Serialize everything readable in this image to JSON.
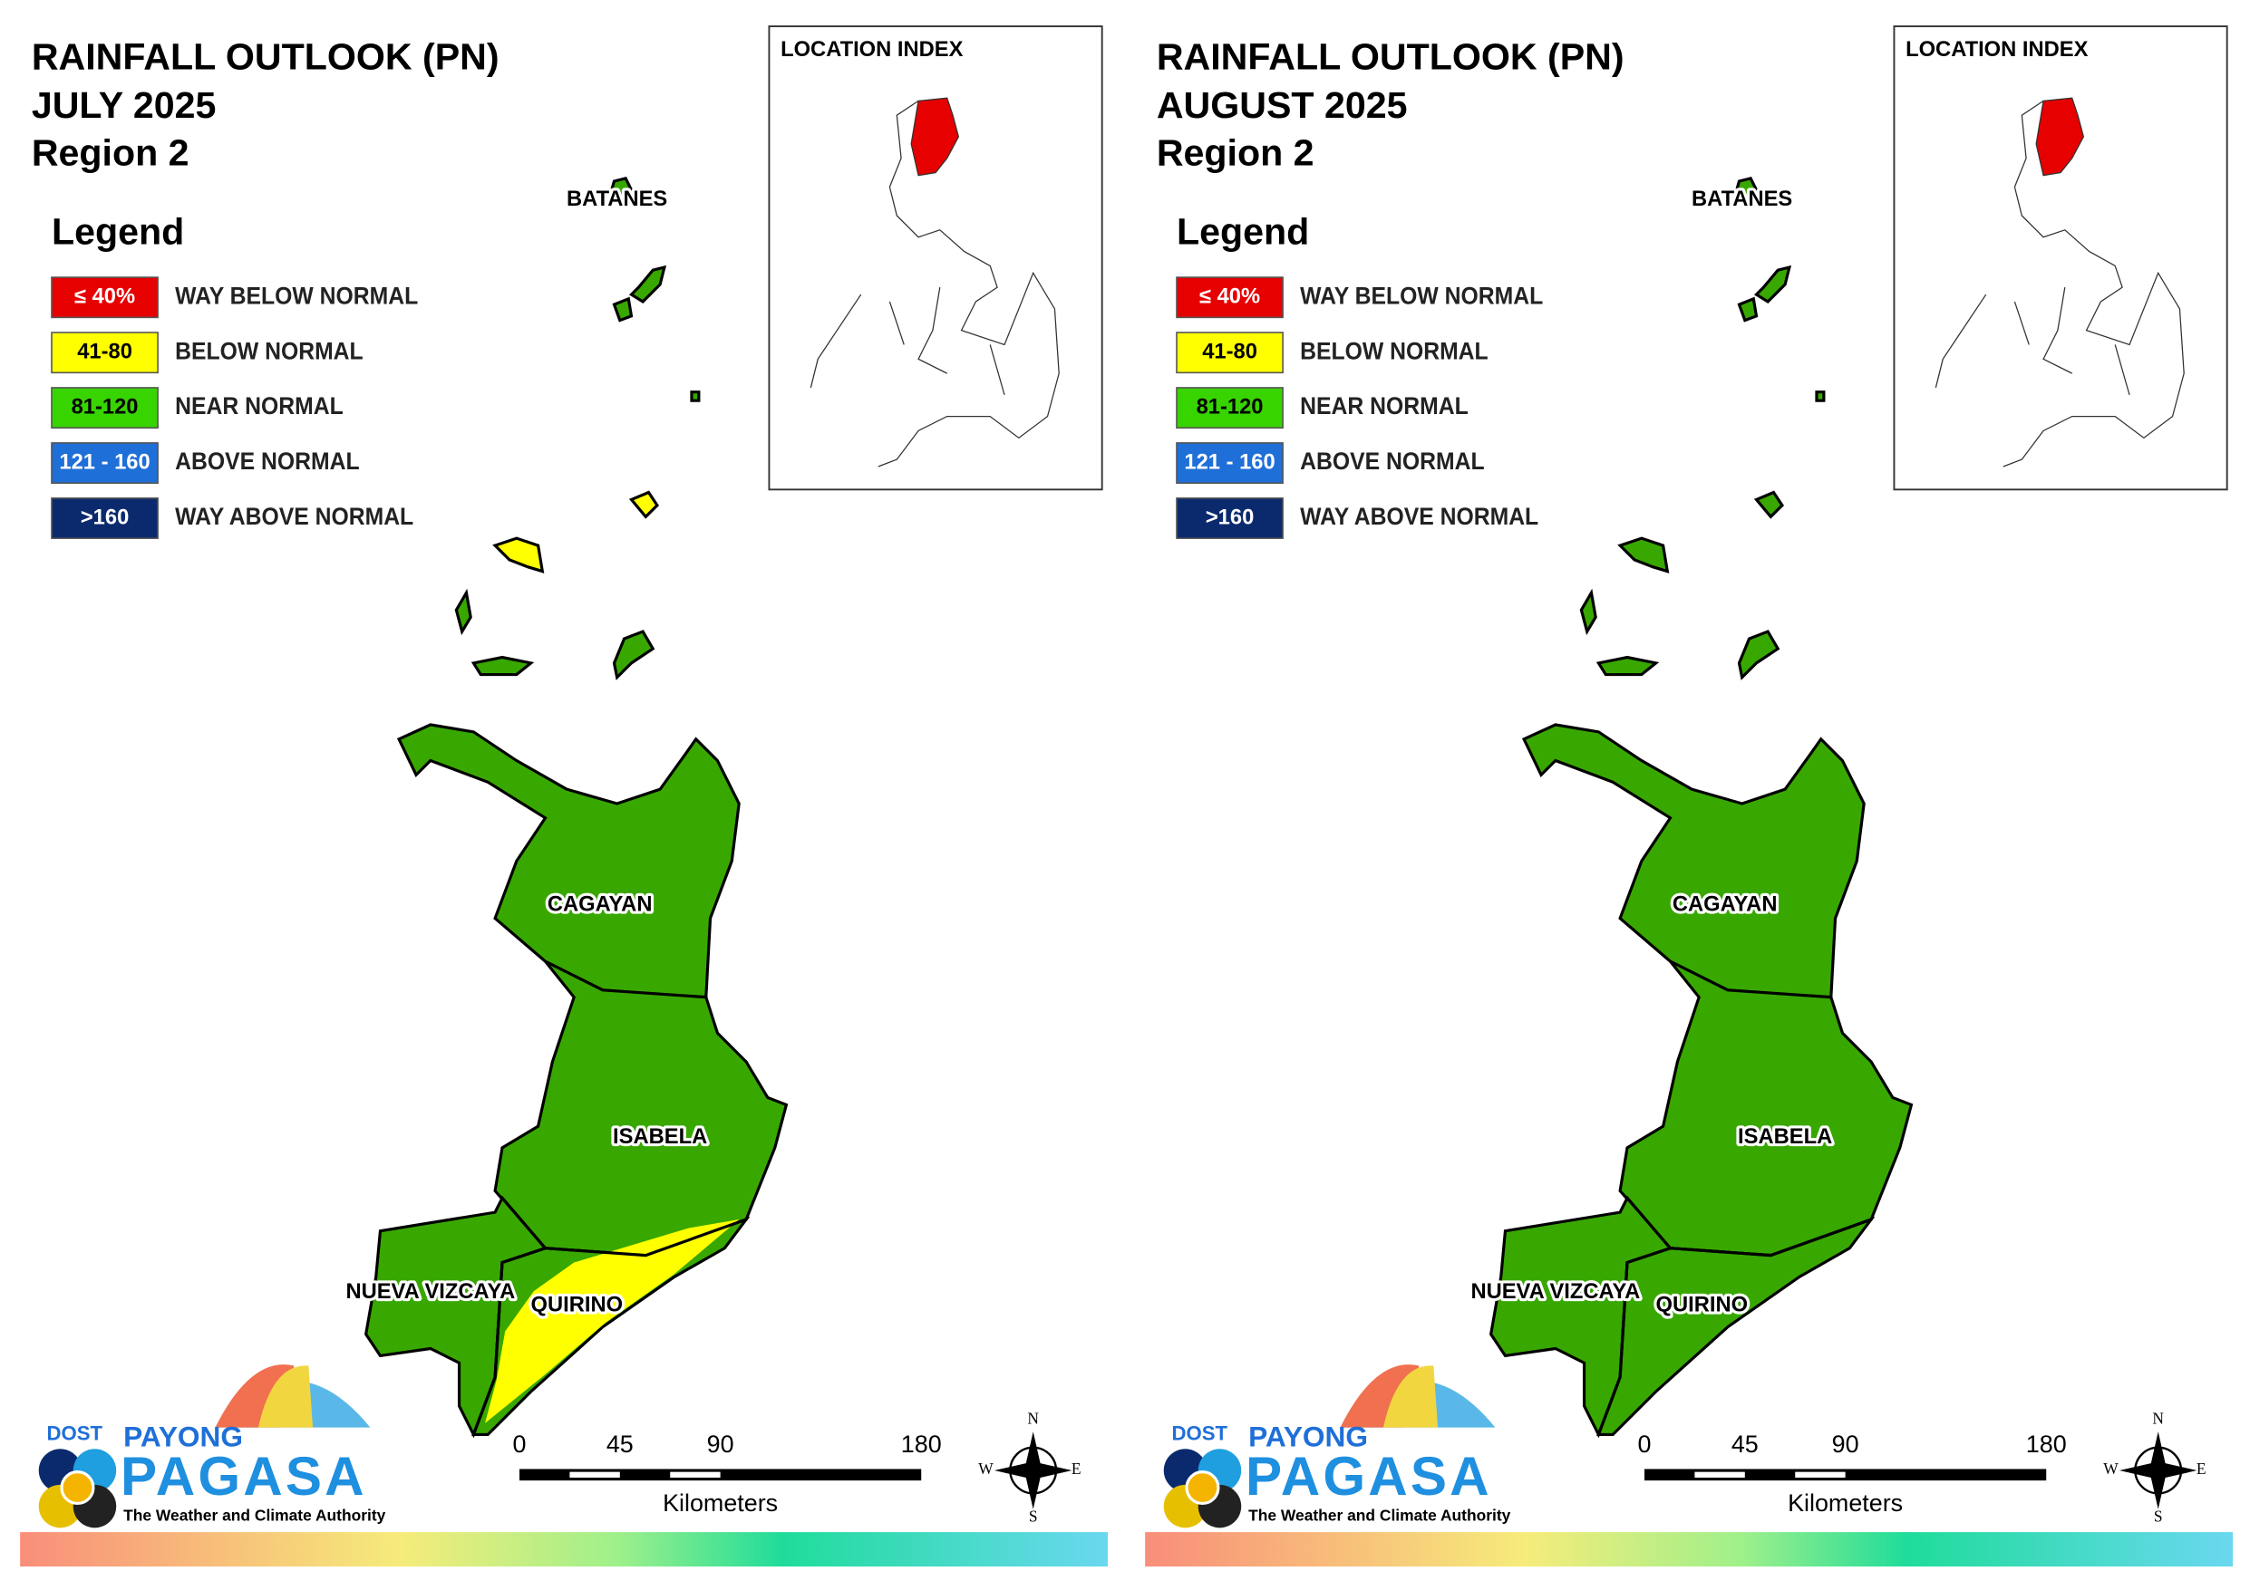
{
  "panels": [
    {
      "title": "RAINFALL OUTLOOK (PN)",
      "period": "JULY 2025",
      "region": "Region 2",
      "legend": {
        "title": "Legend",
        "items": [
          {
            "range": "≤ 40%",
            "label": "WAY BELOW NORMAL",
            "color": "#e60000"
          },
          {
            "range": "41-80",
            "label": "BELOW NORMAL",
            "color": "#ffff00"
          },
          {
            "range": "81-120",
            "label": "NEAR NORMAL",
            "color": "#38d400"
          },
          {
            "range": "121 - 160",
            "label": "ABOVE NORMAL",
            "color": "#1f6fd8"
          },
          {
            "range": ">160",
            "label": "WAY ABOVE NORMAL",
            "color": "#0b2a6e"
          }
        ]
      },
      "location_index": "LOCATION INDEX",
      "places": [
        "BATANES",
        "CAGAYAN",
        "ISABELA",
        "NUEVA VIZCAYA",
        "QUIRINO"
      ],
      "scale": {
        "ticks": [
          0,
          45,
          90,
          180
        ],
        "unit": "Kilometers"
      },
      "compass": [
        "N",
        "E",
        "S",
        "W"
      ],
      "logo": {
        "agency": "DOST",
        "name_top": "PAYONG",
        "name": "PAGASA",
        "tagline": "The Weather and Climate Authority"
      }
    },
    {
      "title": "RAINFALL OUTLOOK (PN)",
      "period": "AUGUST 2025",
      "region": "Region 2",
      "legend": {
        "title": "Legend",
        "items": [
          {
            "range": "≤ 40%",
            "label": "WAY BELOW NORMAL",
            "color": "#e60000"
          },
          {
            "range": "41-80",
            "label": "BELOW NORMAL",
            "color": "#ffff00"
          },
          {
            "range": "81-120",
            "label": "NEAR NORMAL",
            "color": "#38d400"
          },
          {
            "range": "121 - 160",
            "label": "ABOVE NORMAL",
            "color": "#1f6fd8"
          },
          {
            "range": ">160",
            "label": "WAY ABOVE NORMAL",
            "color": "#0b2a6e"
          }
        ]
      },
      "location_index": "LOCATION INDEX",
      "places": [
        "BATANES",
        "CAGAYAN",
        "ISABELA",
        "NUEVA VIZCAYA",
        "QUIRINO"
      ],
      "scale": {
        "ticks": [
          0,
          45,
          90,
          180
        ],
        "unit": "Kilometers"
      },
      "compass": [
        "N",
        "E",
        "S",
        "W"
      ],
      "logo": {
        "agency": "DOST",
        "name_top": "PAYONG",
        "name": "PAGASA",
        "tagline": "The Weather and Climate Authority"
      }
    }
  ]
}
